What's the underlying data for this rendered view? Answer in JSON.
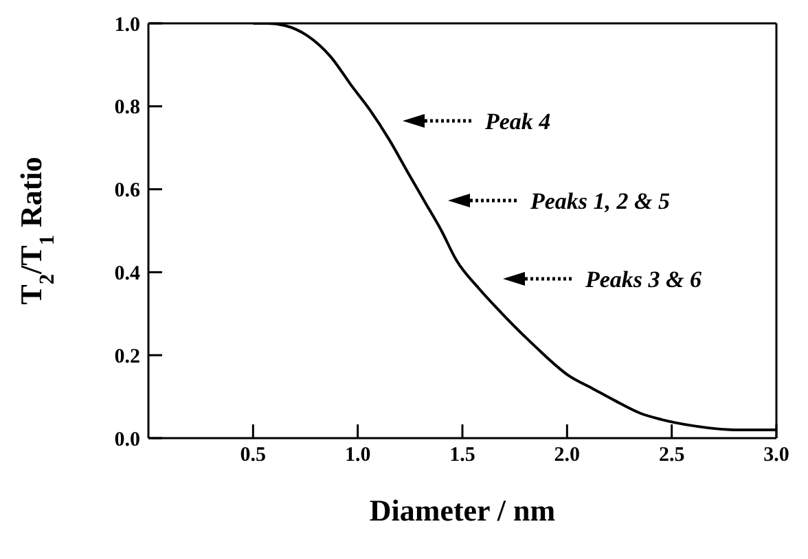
{
  "chart_data": {
    "type": "line",
    "xlabel": "Diameter / nm",
    "ylabel": "T$_{2}$/T$_{1}$ Ratio",
    "x": [
      0.5,
      0.57,
      0.65,
      0.76,
      0.87,
      0.97,
      1.06,
      1.15,
      1.24,
      1.32,
      1.4,
      1.47,
      1.58,
      1.69,
      1.85,
      2.01,
      2.12,
      2.23,
      2.35,
      2.45,
      2.6,
      2.8,
      3.0
    ],
    "series": [
      {
        "color": "#000000",
        "values": [
          1.0,
          1.0,
          0.995,
          0.97,
          0.92,
          0.85,
          0.79,
          0.72,
          0.64,
          0.57,
          0.5,
          0.43,
          0.36,
          0.3,
          0.22,
          0.15,
          0.12,
          0.09,
          0.06,
          0.045,
          0.03,
          0.02,
          0.02
        ]
      }
    ],
    "xlim": [
      0,
      3.0
    ],
    "xticks": [
      0.5,
      {
        "value": 1,
        "label": "1.0"
      },
      1.5,
      {
        "value": 2,
        "label": "2.0"
      },
      2.5,
      {
        "value": 3,
        "label": "3.0"
      }
    ],
    "ylim": [
      0,
      1.0
    ],
    "yticks": [
      {
        "value": 0,
        "label": "0.0"
      },
      0.2,
      0.4,
      0.6,
      0.8,
      {
        "value": 1,
        "label": "1.0"
      }
    ],
    "grid": false,
    "legend": false,
    "marker": "none",
    "line_style": "solid",
    "annotations": [
      "Peak 4",
      "Peaks 1, 2 & 5",
      "Peaks 3 & 6"
    ]
  }
}
